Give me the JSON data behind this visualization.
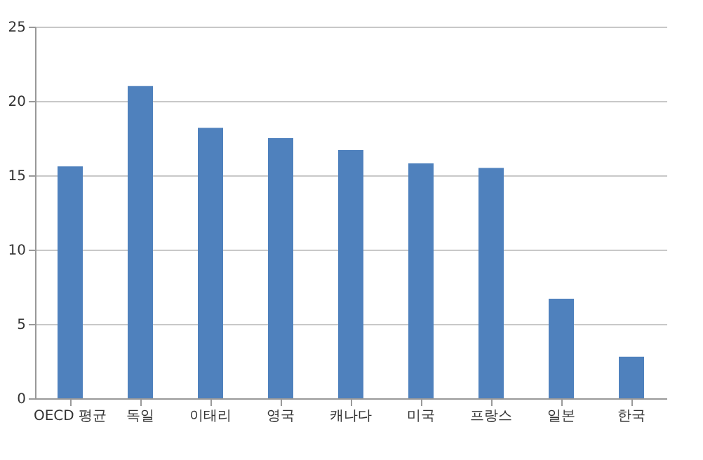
{
  "chart_data": {
    "type": "bar",
    "categories": [
      "OECD 평균",
      "독일",
      "이태리",
      "영국",
      "캐나다",
      "미국",
      "프랑스",
      "일본",
      "한국"
    ],
    "values": [
      15.6,
      21,
      18.2,
      17.5,
      16.7,
      15.8,
      15.5,
      6.7,
      2.8
    ],
    "color": "#4f81bd",
    "ylim": [
      0,
      25
    ],
    "yticks": [
      0,
      5,
      10,
      15,
      20,
      25
    ],
    "grid": "y"
  }
}
